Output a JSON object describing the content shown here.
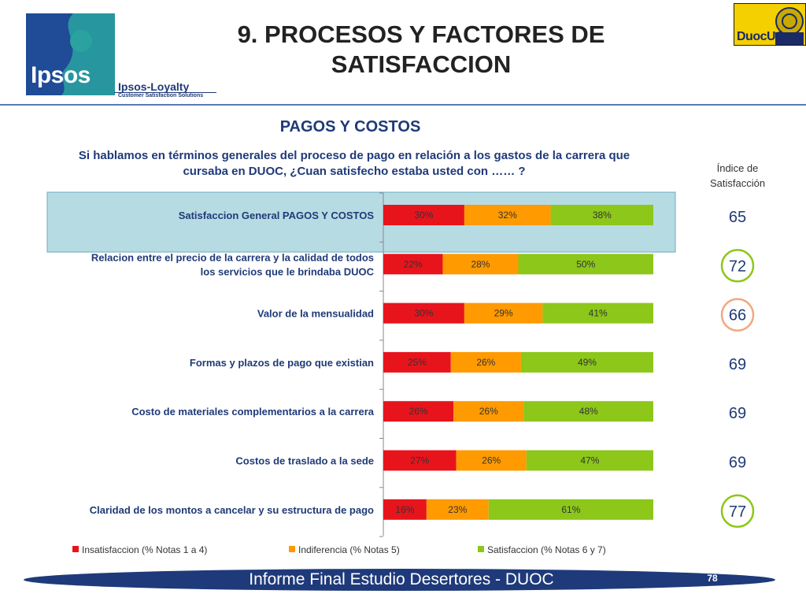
{
  "header": {
    "title_line1": "9. PROCESOS Y FACTORES DE",
    "title_line2": "SATISFACCION",
    "logo_text": "Ipsos",
    "sub_brand": "Ipsos-Loyalty",
    "sub_brand_tagline": "Customer Satisfaction Solutions",
    "partner_logo_text": "DuocUC"
  },
  "section_title": "PAGOS Y COSTOS",
  "question_line1": "Si hablamos en términos generales del proceso de pago en relación a los gastos de la carrera que",
  "question_line2": "cursaba en DUOC, ¿Cuan satisfecho estaba usted con …… ?",
  "index_title_line1": "Índice de",
  "index_title_line2": "Satisfacción",
  "footer": {
    "text": "Informe Final Estudio Desertores - DUOC",
    "page": "78"
  },
  "colors": {
    "insatisfaccion": "#e8141c",
    "indiferencia": "#ff9a00",
    "satisfaccion": "#8cc71a",
    "highlight": "#b7dbe3",
    "highlight_border": "#6aaec0",
    "circle_highlight": "#f2a77e",
    "circle_normal": "#8cc71a"
  },
  "chart_data": {
    "type": "bar",
    "orientation": "horizontal",
    "stacked": true,
    "percent": true,
    "title": "PAGOS Y COSTOS",
    "categories": [
      [
        "Satisfaccion General PAGOS Y COSTOS"
      ],
      [
        "Relacion entre el precio de la carrera y la calidad de todos",
        "los servicios que le brindaba DUOC"
      ],
      [
        "Valor de la mensualidad"
      ],
      [
        "Formas y plazos de pago que existian"
      ],
      [
        "Costo de materiales complementarios a la carrera"
      ],
      [
        "Costos de traslado a la sede"
      ],
      [
        "Claridad de los montos a cancelar y su estructura de pago"
      ]
    ],
    "series": [
      {
        "name": "Insatisfaccion (% Notas 1 a 4)",
        "color": "#e8141c",
        "values": [
          30,
          22,
          30,
          25,
          26,
          27,
          16
        ]
      },
      {
        "name": "Indiferencia (% Notas 5)",
        "color": "#ff9a00",
        "values": [
          32,
          28,
          29,
          26,
          26,
          26,
          23
        ]
      },
      {
        "name": "Satisfaccion (% Notas 6 y 7)",
        "color": "#8cc71a",
        "values": [
          38,
          50,
          41,
          49,
          48,
          47,
          61
        ]
      }
    ],
    "xlim": [
      0,
      100
    ],
    "legend_position": "bottom",
    "highlighted_category": 0,
    "satisfaction_index": [
      {
        "value": "65",
        "circle": "none"
      },
      {
        "value": "72",
        "circle": "green"
      },
      {
        "value": "66",
        "circle": "orange"
      },
      {
        "value": "69",
        "circle": "none"
      },
      {
        "value": "69",
        "circle": "none"
      },
      {
        "value": "69",
        "circle": "none"
      },
      {
        "value": "77",
        "circle": "green"
      }
    ]
  }
}
